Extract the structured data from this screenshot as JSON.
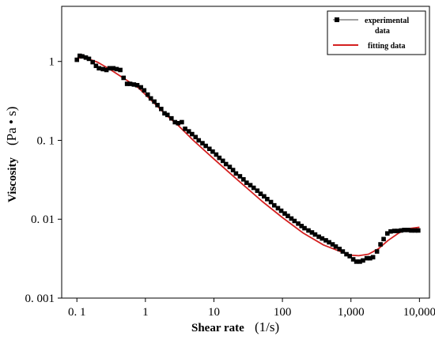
{
  "chart_data": {
    "type": "scatter",
    "title": "",
    "xlabel": "Shear rate",
    "xlabel_unit": "(1/s)",
    "ylabel": "Viscosity",
    "ylabel_unit": "(Pa • s)",
    "xscale": "log",
    "yscale": "log",
    "xlim": [
      0.06,
      14000
    ],
    "ylim": [
      0.001,
      5
    ],
    "x_ticks": [
      0.1,
      1,
      10,
      100,
      1000,
      10000
    ],
    "x_tick_labels": [
      "0. 1",
      "1",
      "10",
      "100",
      "1,000",
      "10,000"
    ],
    "y_ticks": [
      0.001,
      0.01,
      0.1,
      1
    ],
    "y_tick_labels": [
      "0. 001",
      "0. 01",
      "0. 1",
      "1"
    ],
    "grid": false,
    "legend_position": "top-right",
    "series": [
      {
        "name": "experimental data",
        "name_lines": [
          "experimental",
          "data"
        ],
        "kind": "scatter",
        "marker": "square",
        "color": "#000000",
        "x": [
          0.1,
          0.11,
          0.12,
          0.135,
          0.15,
          0.17,
          0.19,
          0.21,
          0.24,
          0.27,
          0.3,
          0.34,
          0.38,
          0.43,
          0.48,
          0.54,
          0.6,
          0.68,
          0.76,
          0.86,
          0.96,
          1.08,
          1.2,
          1.35,
          1.5,
          1.7,
          1.9,
          2.1,
          2.4,
          2.7,
          3.0,
          3.4,
          3.8,
          4.3,
          4.8,
          5.4,
          6.0,
          6.8,
          7.6,
          8.6,
          9.6,
          10.8,
          12,
          13.5,
          15,
          17,
          19,
          21,
          24,
          27,
          30,
          34,
          38,
          43,
          48,
          54,
          60,
          68,
          76,
          86,
          96,
          108,
          120,
          135,
          150,
          170,
          190,
          210,
          240,
          270,
          300,
          340,
          380,
          430,
          480,
          540,
          600,
          680,
          760,
          860,
          960,
          1080,
          1200,
          1350,
          1500,
          1700,
          1900,
          2100,
          2400,
          2700,
          3000,
          3400,
          3800,
          4300,
          4800,
          5400,
          6000,
          6800,
          7600,
          8600,
          9600
        ],
        "y": [
          1.05,
          1.18,
          1.16,
          1.12,
          1.08,
          0.98,
          0.88,
          0.82,
          0.8,
          0.78,
          0.82,
          0.82,
          0.8,
          0.78,
          0.62,
          0.52,
          0.52,
          0.51,
          0.5,
          0.47,
          0.43,
          0.38,
          0.34,
          0.31,
          0.28,
          0.25,
          0.22,
          0.21,
          0.19,
          0.17,
          0.165,
          0.17,
          0.14,
          0.13,
          0.12,
          0.11,
          0.1,
          0.092,
          0.085,
          0.078,
          0.072,
          0.066,
          0.06,
          0.055,
          0.05,
          0.046,
          0.042,
          0.038,
          0.035,
          0.032,
          0.029,
          0.027,
          0.025,
          0.023,
          0.021,
          0.0195,
          0.018,
          0.0165,
          0.015,
          0.0138,
          0.0128,
          0.0118,
          0.011,
          0.0102,
          0.0095,
          0.0088,
          0.0082,
          0.0077,
          0.0072,
          0.0068,
          0.0064,
          0.006,
          0.0057,
          0.0054,
          0.0051,
          0.0048,
          0.0045,
          0.0042,
          0.0039,
          0.0036,
          0.0034,
          0.0031,
          0.0029,
          0.0029,
          0.003,
          0.0032,
          0.0032,
          0.0033,
          0.0039,
          0.0048,
          0.0056,
          0.0066,
          0.007,
          0.0071,
          0.0071,
          0.0072,
          0.0073,
          0.0073,
          0.0072,
          0.0072,
          0.0072
        ]
      },
      {
        "name": "fitting data",
        "kind": "line",
        "color": "#d42020",
        "x": [
          0.1,
          0.13,
          0.2,
          0.3,
          0.5,
          0.8,
          1,
          1.5,
          2,
          3,
          5,
          10,
          20,
          50,
          100,
          200,
          400,
          700,
          1000,
          1300,
          1800,
          2500,
          3500,
          5000,
          7000,
          10000
        ],
        "y": [
          1.1,
          1.12,
          0.98,
          0.8,
          0.6,
          0.46,
          0.38,
          0.27,
          0.21,
          0.155,
          0.1,
          0.058,
          0.034,
          0.017,
          0.0105,
          0.0067,
          0.0047,
          0.0039,
          0.0035,
          0.00345,
          0.0036,
          0.0042,
          0.0054,
          0.0067,
          0.0076,
          0.0079
        ]
      }
    ]
  }
}
